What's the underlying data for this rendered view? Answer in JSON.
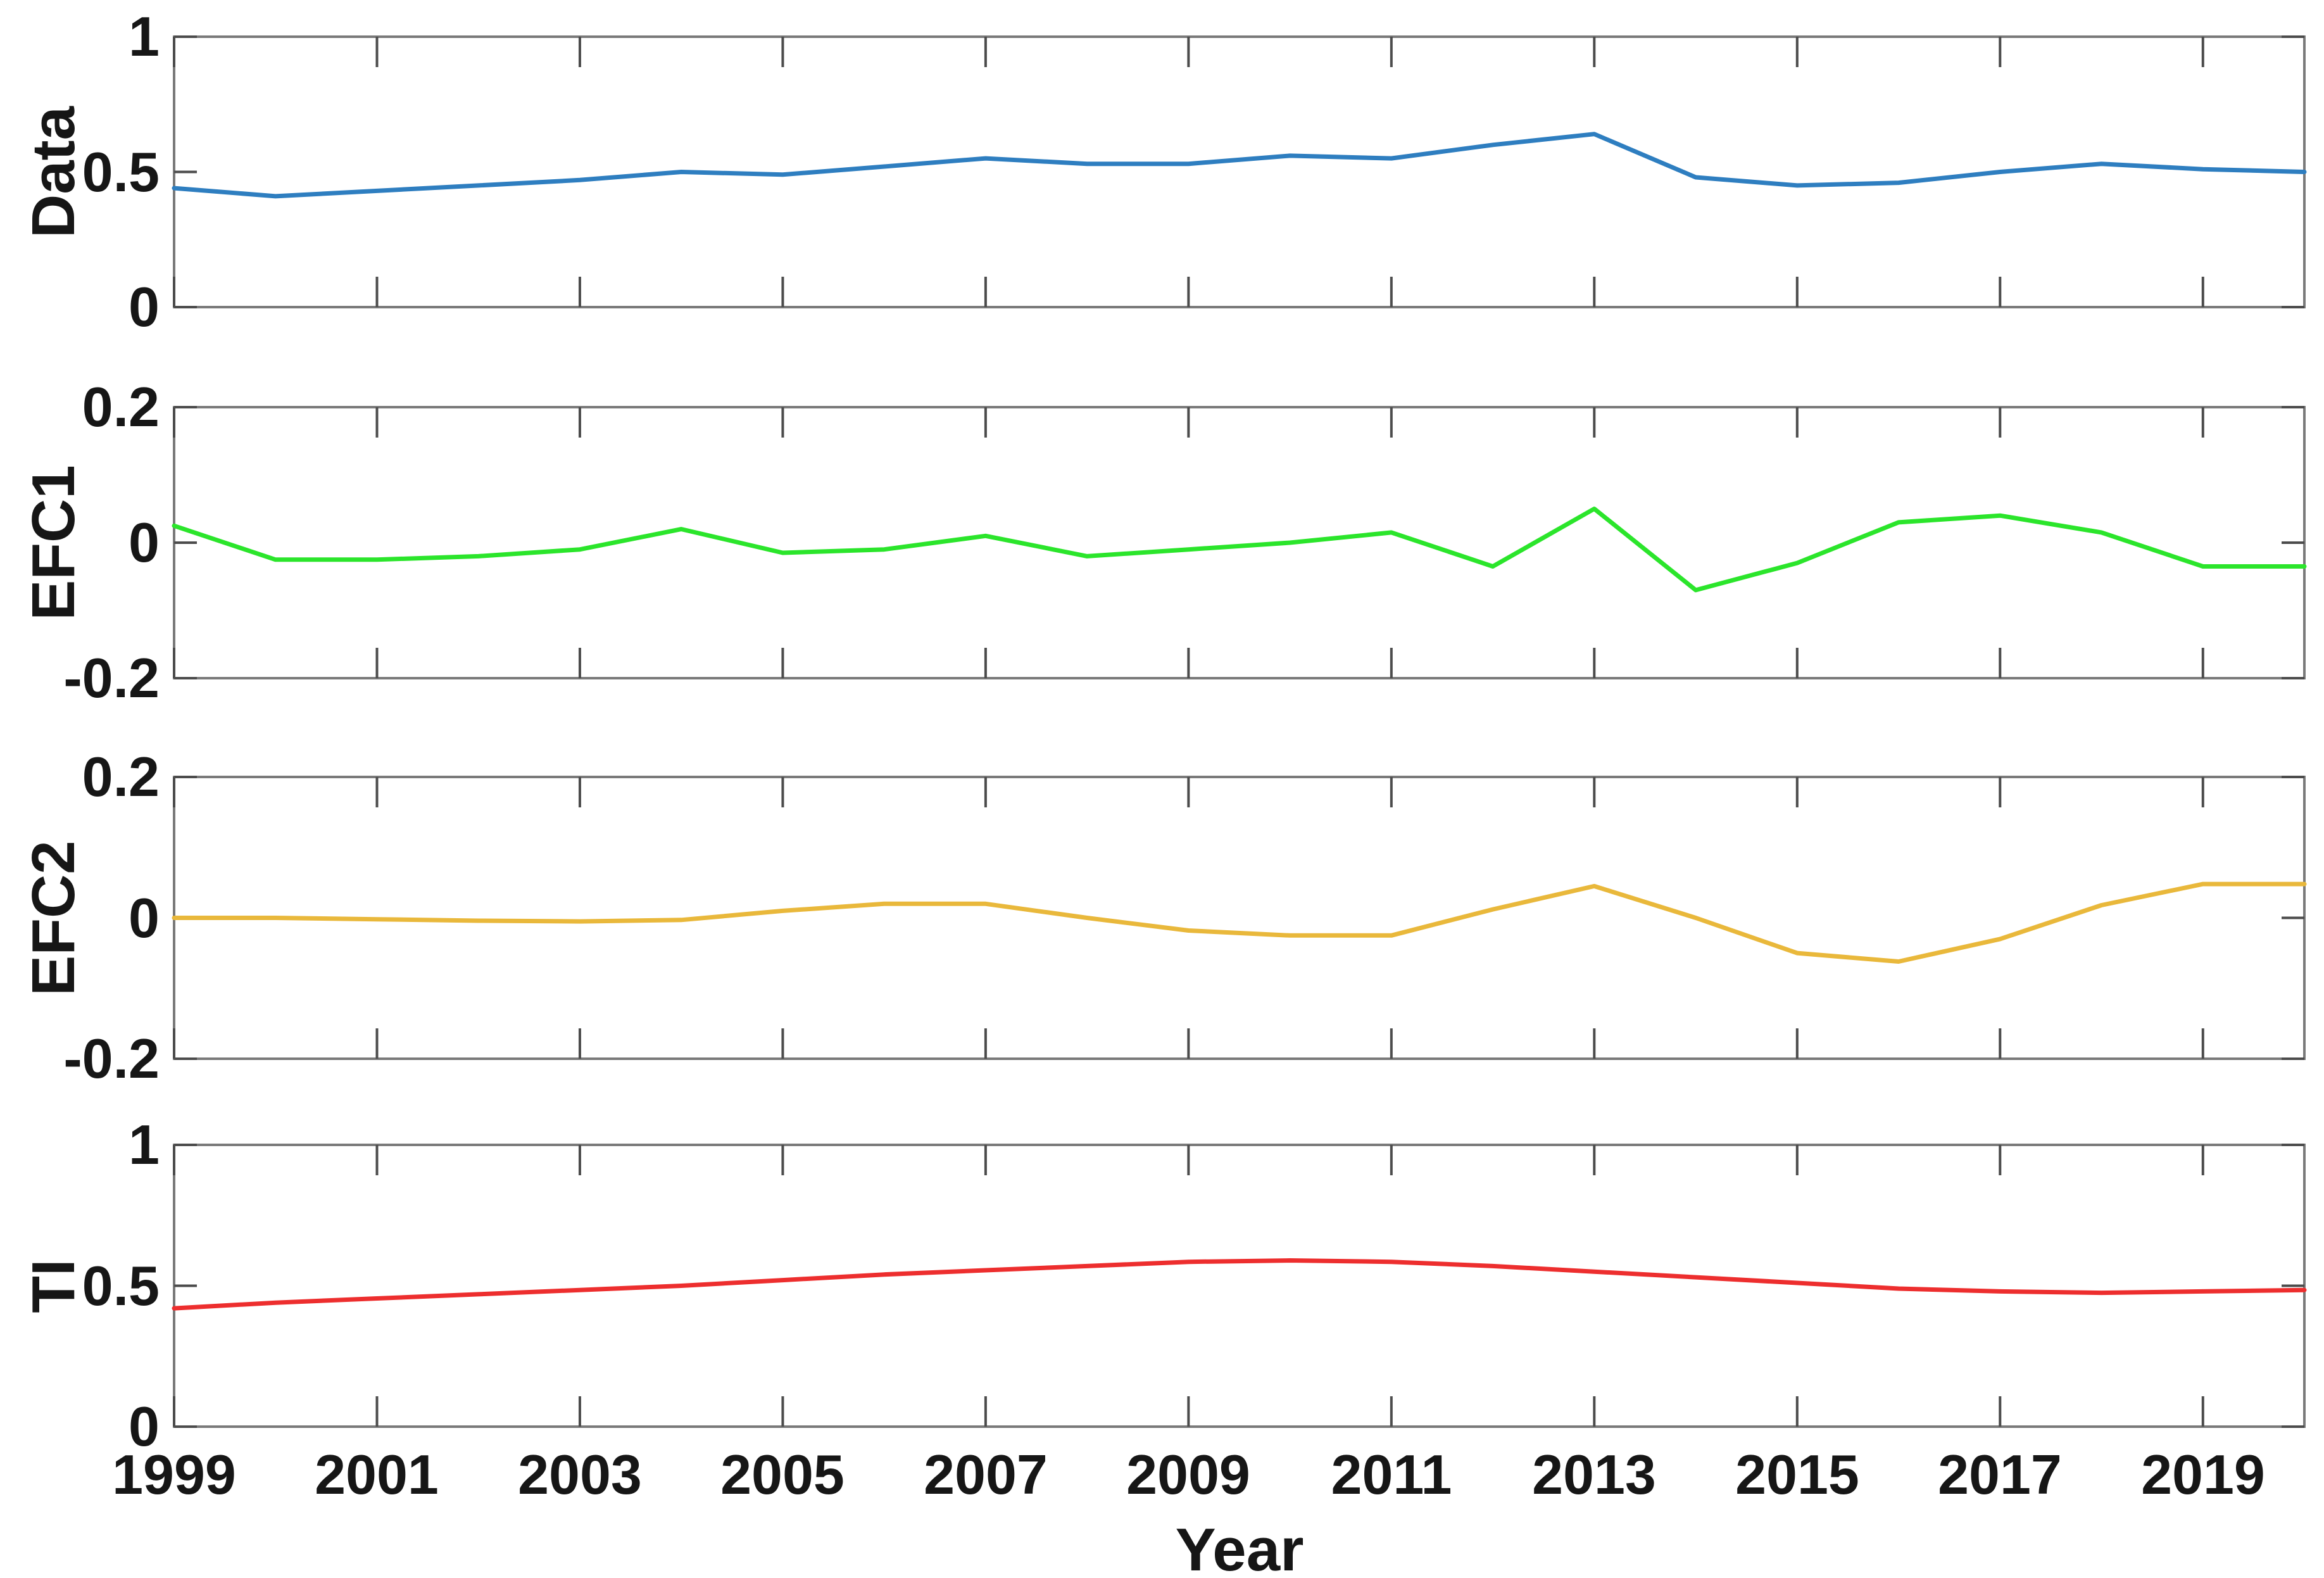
{
  "figure": {
    "background": "#ffffff",
    "axis_box_color": "#7a7a7a",
    "tick_color": "#4c4c4c",
    "text_color": "#161616"
  },
  "chart_data": {
    "type": "line",
    "title": "",
    "x_axis": {
      "label": "Year",
      "xlim": [
        1999,
        2020
      ],
      "tick_years": [
        1999,
        2001,
        2003,
        2005,
        2007,
        2009,
        2011,
        2013,
        2015,
        2017,
        2019
      ],
      "tick_labels": [
        "1999",
        "2001",
        "2003",
        "2005",
        "2007",
        "2009",
        "2011",
        "2013",
        "2015",
        "2017",
        "2019"
      ],
      "years": [
        1999,
        2000,
        2001,
        2002,
        2003,
        2004,
        2005,
        2006,
        2007,
        2008,
        2009,
        2010,
        2011,
        2012,
        2013,
        2014,
        2015,
        2016,
        2017,
        2018,
        2019,
        2020
      ],
      "grid": false
    },
    "legend": null,
    "panels": [
      {
        "ylabel": "Data",
        "color": "#2e7ec0",
        "ylim": [
          0,
          1
        ],
        "ytick_values": [
          0,
          0.5,
          1
        ],
        "ytick_labels": [
          "0",
          "0.5",
          "1"
        ],
        "values": [
          0.44,
          0.41,
          0.43,
          0.45,
          0.47,
          0.5,
          0.49,
          0.52,
          0.55,
          0.53,
          0.53,
          0.56,
          0.55,
          0.6,
          0.64,
          0.48,
          0.45,
          0.46,
          0.5,
          0.53,
          0.51,
          0.5
        ]
      },
      {
        "ylabel": "EFC1",
        "color": "#2be52b",
        "ylim": [
          -0.2,
          0.2
        ],
        "ytick_values": [
          -0.2,
          0,
          0.2
        ],
        "ytick_labels": [
          "-0.2",
          "0",
          "0.2"
        ],
        "values": [
          0.025,
          -0.025,
          -0.025,
          -0.02,
          -0.01,
          0.02,
          -0.015,
          -0.01,
          0.01,
          -0.02,
          -0.01,
          0.0,
          0.015,
          -0.035,
          0.05,
          -0.07,
          -0.03,
          0.03,
          0.04,
          0.015,
          -0.035,
          -0.035
        ]
      },
      {
        "ylabel": "EFC2",
        "color": "#e9b83b",
        "ylim": [
          -0.2,
          0.2
        ],
        "ytick_values": [
          -0.2,
          0,
          0.2
        ],
        "ytick_labels": [
          "-0.2",
          "0",
          "0.2"
        ],
        "values": [
          0.0,
          0.0,
          -0.002,
          -0.004,
          -0.005,
          -0.003,
          0.01,
          0.02,
          0.02,
          0.0,
          -0.018,
          -0.025,
          -0.025,
          0.012,
          0.045,
          0.0,
          -0.05,
          -0.062,
          -0.03,
          0.018,
          0.048,
          0.048
        ]
      },
      {
        "ylabel": "TI",
        "color": "#ed2e2e",
        "ylim": [
          0,
          1
        ],
        "ytick_values": [
          0,
          0.5,
          1
        ],
        "ytick_labels": [
          "0",
          "0.5",
          "1"
        ],
        "values": [
          0.42,
          0.44,
          0.455,
          0.47,
          0.485,
          0.5,
          0.52,
          0.54,
          0.555,
          0.57,
          0.585,
          0.59,
          0.585,
          0.57,
          0.55,
          0.53,
          0.51,
          0.49,
          0.48,
          0.475,
          0.48,
          0.485
        ]
      }
    ]
  }
}
